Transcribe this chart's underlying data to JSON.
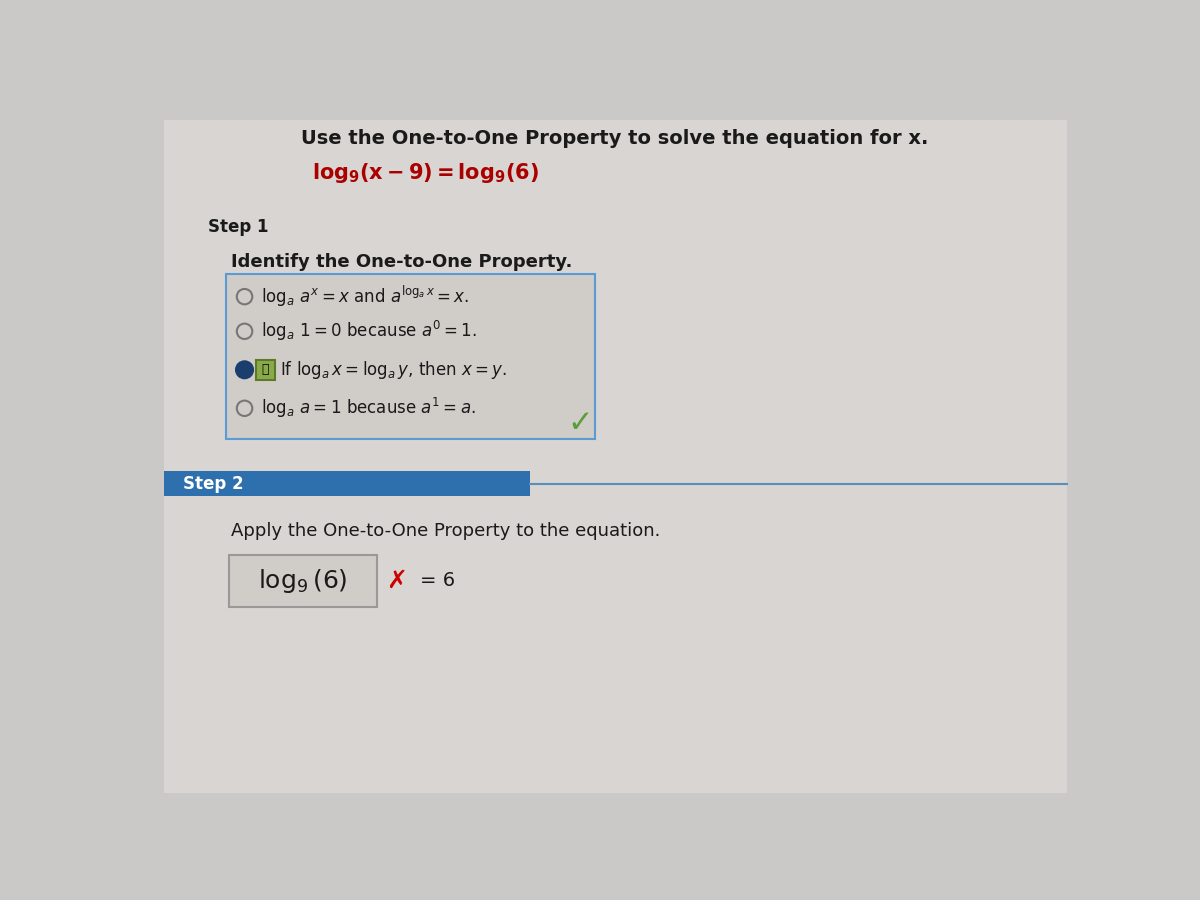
{
  "bg_color": "#cbc9c7",
  "content_bg": "#d8d5d2",
  "title_text": "Use the One-to-One Property to solve the equation for x.",
  "step1_label": "Step 1",
  "step1_instruction": "Identify the One-to-One Property.",
  "step2_label": "Step 2",
  "step2_instruction": "Apply the One-to-One Property to the equation.",
  "step2_bar_color": "#2e6fad",
  "step2_label_color": "#ffffff",
  "box_border_color": "#5b9bd5",
  "options_box_bg": "#d0ccc8",
  "selected_dot_color": "#1a3f6f",
  "check_color": "#5a9e3a",
  "wrong_x_color": "#cc0000",
  "text_color": "#1a1a1a",
  "answer_box_border": "#999999",
  "answer_box_bg": "#d0ccc8",
  "line_color": "#5a8fbb",
  "eq_color": "#aa0000"
}
